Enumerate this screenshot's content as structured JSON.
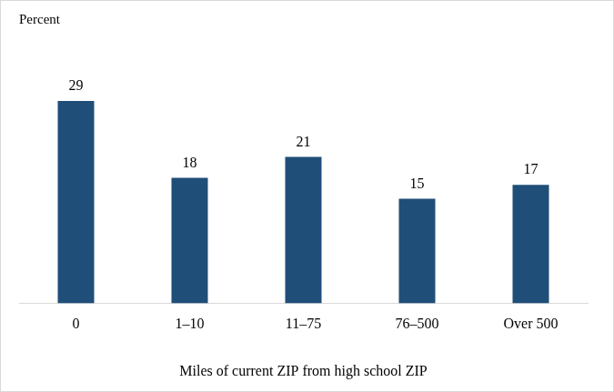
{
  "chart_data": {
    "type": "bar",
    "ylabel": "Percent",
    "xlabel": "Miles of current ZIP from high school ZIP",
    "categories": [
      "0",
      "1–10",
      "11–75",
      "76–500",
      "Over 500"
    ],
    "values": [
      29,
      18,
      21,
      15,
      17
    ],
    "color": "#1f4e79",
    "ylim": [
      0,
      35
    ],
    "grid": false,
    "data_labels": true,
    "tick_labels": "x"
  }
}
